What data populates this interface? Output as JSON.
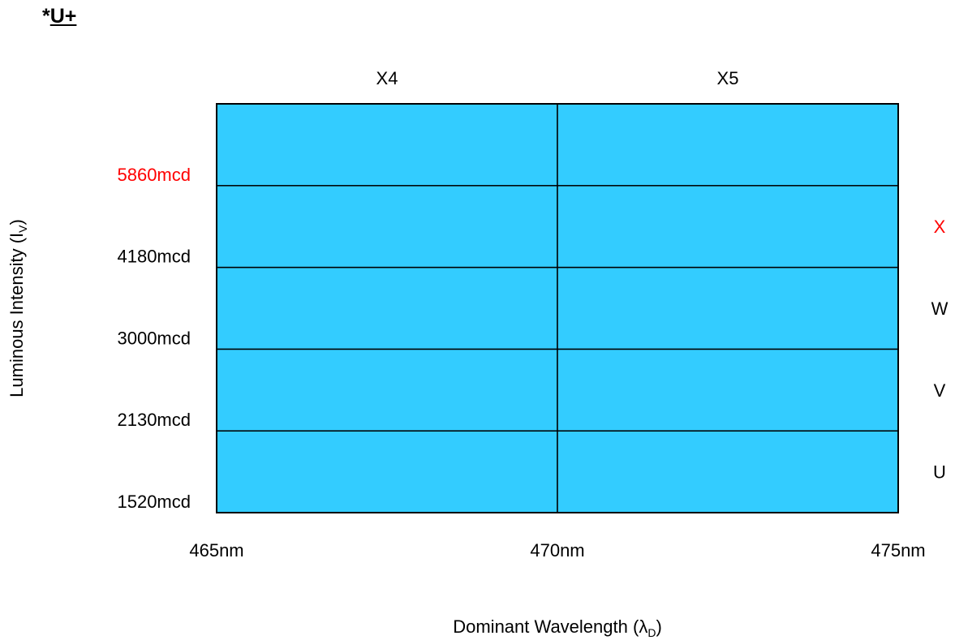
{
  "title": {
    "prefix": "*",
    "main": "U+"
  },
  "chart_data": {
    "type": "heatmap",
    "title": "*U+",
    "xlabel": "Dominant Wavelength (λD)",
    "ylabel": "Luminous Intensity (IV)",
    "x_ticks": [
      {
        "label": "465nm",
        "value": 465
      },
      {
        "label": "470nm",
        "value": 470
      },
      {
        "label": "475nm",
        "value": 475
      }
    ],
    "xlim": [
      465,
      475
    ],
    "x_bins": [
      {
        "name": "X4",
        "range": [
          465,
          470
        ]
      },
      {
        "name": "X5",
        "range": [
          470,
          475
        ]
      }
    ],
    "y_ticks": [
      {
        "label": "1520mcd",
        "value": 1520,
        "highlight": false
      },
      {
        "label": "2130mcd",
        "value": 2130,
        "highlight": false
      },
      {
        "label": "3000mcd",
        "value": 3000,
        "highlight": false
      },
      {
        "label": "4180mcd",
        "value": 4180,
        "highlight": false
      },
      {
        "label": "5860mcd",
        "value": 5860,
        "highlight": true
      }
    ],
    "y_bins": [
      {
        "name": "U",
        "range": [
          1520,
          2130
        ],
        "highlight": false
      },
      {
        "name": "V",
        "range": [
          2130,
          3000
        ],
        "highlight": false
      },
      {
        "name": "W",
        "range": [
          3000,
          4180
        ],
        "highlight": false
      },
      {
        "name": "X",
        "range": [
          4180,
          5860
        ],
        "highlight": true
      },
      {
        "name": "",
        "range": [
          5860,
          null
        ],
        "highlight": false
      }
    ],
    "colors": {
      "cell": "#33ccff",
      "grid": "#000000",
      "highlight": "#ff0000"
    }
  }
}
